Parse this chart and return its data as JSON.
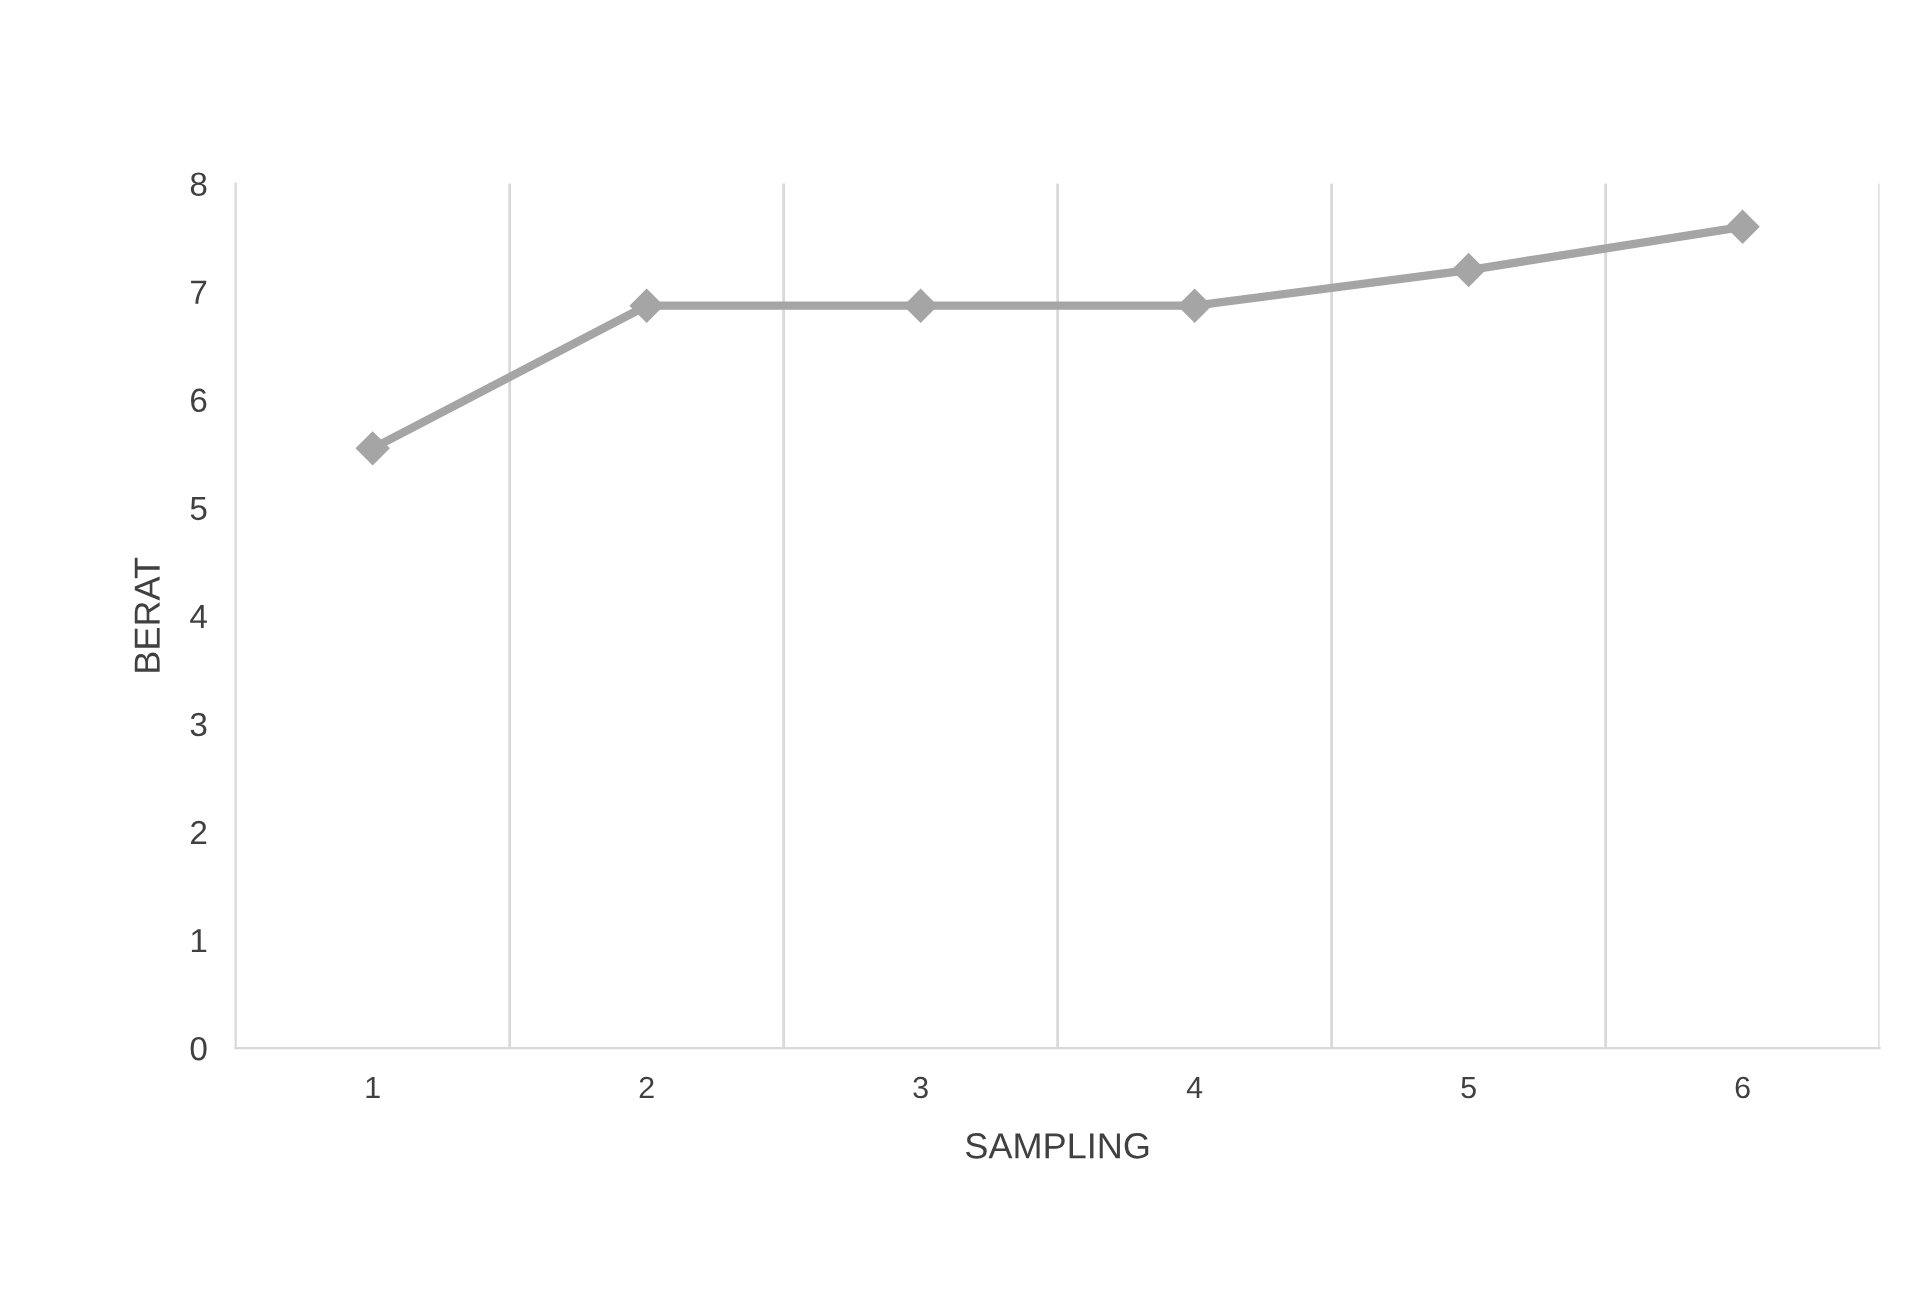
{
  "chart_data": {
    "type": "line",
    "xlabel": "SAMPLING",
    "ylabel": "BERAT",
    "categories": [
      "1",
      "2",
      "3",
      "4",
      "5",
      "6"
    ],
    "series": [
      {
        "color": "#a5a5a5",
        "values": [
          5.55,
          6.87,
          6.87,
          6.87,
          7.2,
          7.6
        ]
      }
    ],
    "ylim": [
      0,
      8
    ],
    "yticks": [
      0,
      1,
      2,
      3,
      4,
      5,
      6,
      7,
      8
    ],
    "grid": "x",
    "marker": "diamond",
    "line_style": "solid"
  }
}
